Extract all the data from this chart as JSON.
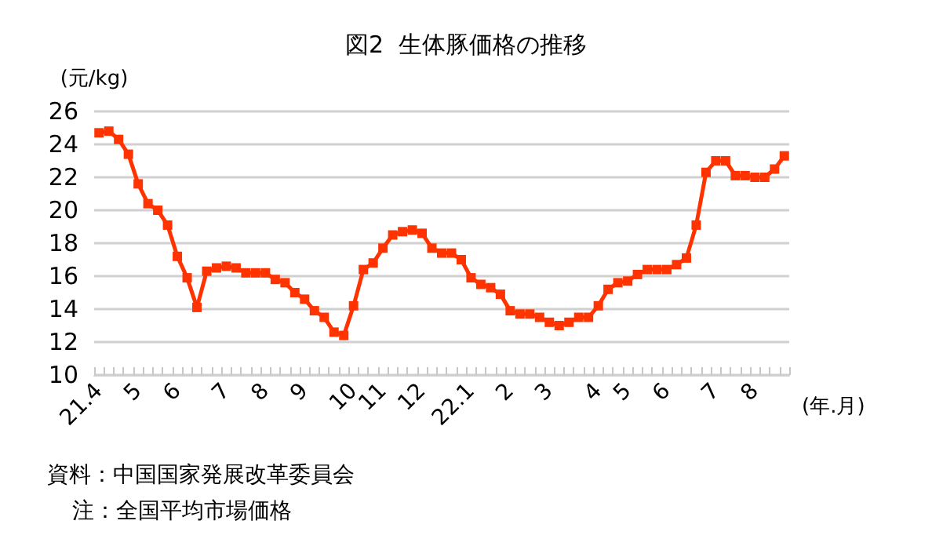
{
  "chart_data": {
    "type": "line",
    "title": "図2  生体豚価格の推移",
    "ylabel": "(元/kg)",
    "xlabel": "(年.月)",
    "categories": [
      "21.4",
      null,
      null,
      null,
      "5",
      null,
      null,
      null,
      "6",
      null,
      null,
      null,
      null,
      "7",
      null,
      null,
      null,
      "8",
      null,
      null,
      null,
      "9",
      null,
      null,
      null,
      null,
      "10",
      null,
      null,
      "11",
      null,
      null,
      null,
      "12",
      null,
      null,
      null,
      null,
      "22.1",
      null,
      null,
      null,
      "2",
      null,
      null,
      null,
      "3",
      null,
      null,
      null,
      null,
      "4",
      null,
      null,
      "5",
      null,
      null,
      null,
      "6",
      null,
      null,
      null,
      null,
      "7",
      null,
      null,
      null,
      "8",
      null,
      null,
      null
    ],
    "series": [
      {
        "color": "#ff3300",
        "values": [
          24.7,
          24.8,
          24.3,
          23.4,
          21.6,
          20.4,
          20.0,
          19.1,
          17.2,
          15.9,
          14.1,
          16.3,
          16.5,
          16.6,
          16.5,
          16.2,
          16.2,
          16.2,
          15.8,
          15.6,
          15.0,
          14.6,
          13.9,
          13.5,
          12.6,
          12.4,
          14.2,
          16.4,
          16.8,
          17.7,
          18.5,
          18.7,
          18.8,
          18.6,
          17.7,
          17.4,
          17.4,
          17.0,
          15.9,
          15.5,
          15.3,
          14.9,
          13.9,
          13.7,
          13.7,
          13.5,
          13.2,
          13.0,
          13.2,
          13.5,
          13.5,
          14.2,
          15.2,
          15.6,
          15.7,
          16.1,
          16.4,
          16.4,
          16.4,
          16.7,
          17.1,
          19.1,
          22.3,
          23.0,
          23.0,
          22.1,
          22.1,
          22.0,
          22.0,
          22.5,
          23.3
        ]
      }
    ],
    "ylim": [
      10,
      26
    ],
    "yticks": [
      10,
      12,
      14,
      16,
      18,
      20,
      22,
      24,
      26
    ],
    "grid": "y",
    "marker": "square",
    "line_style": "solid",
    "annotations": [
      "資料：中国国家発展改革委員会",
      "注：全国平均市場価格"
    ]
  }
}
